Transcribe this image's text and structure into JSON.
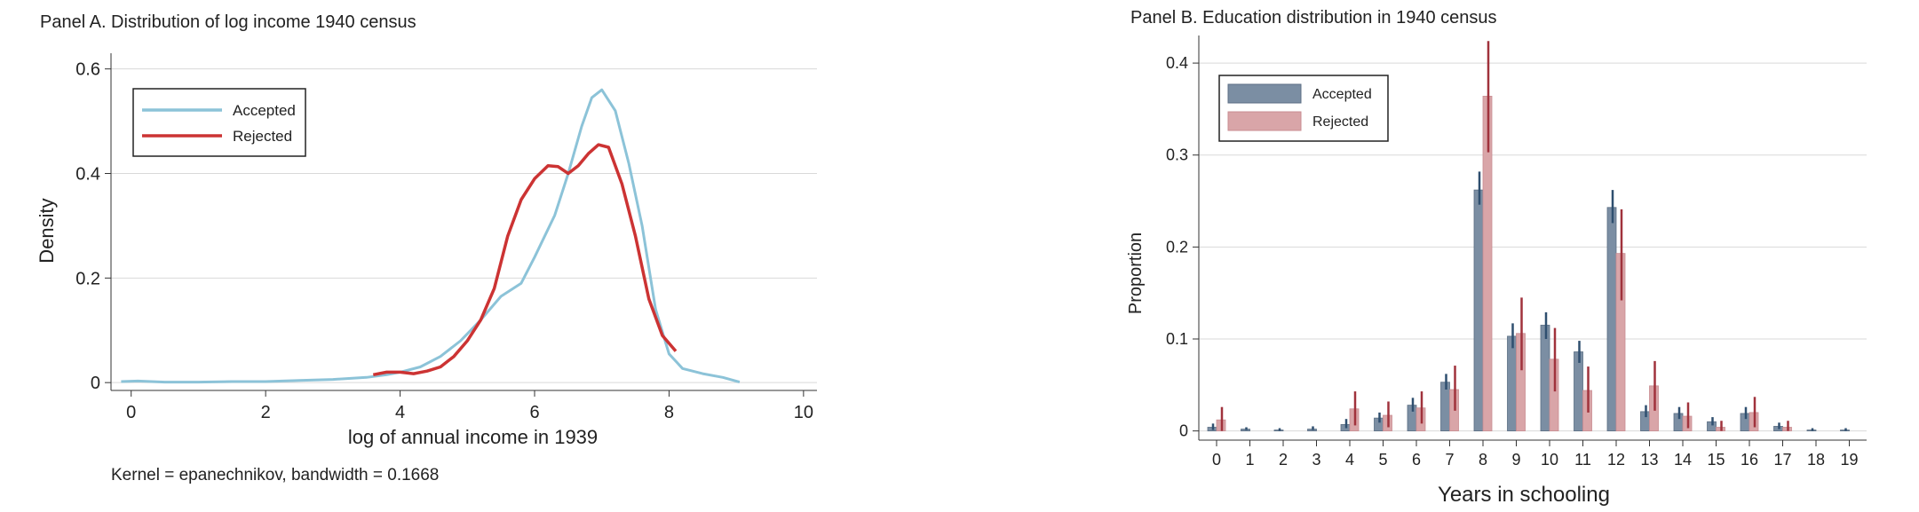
{
  "chart_data": [
    {
      "type": "line",
      "title": "Panel A. Distribution of log income 1940 census",
      "xlabel": "log of annual income in 1939",
      "ylabel": "Density",
      "xlim": [
        -0.3,
        10.2
      ],
      "ylim": [
        -0.015,
        0.63
      ],
      "xticks": [
        0,
        2,
        4,
        6,
        8,
        10
      ],
      "yticks": [
        0,
        0.2,
        0.4,
        0.6
      ],
      "xtick_labels": [
        "0",
        "2",
        "4",
        "6",
        "8",
        "10"
      ],
      "ytick_labels": [
        "0",
        "0.2",
        "0.4",
        "0.6"
      ],
      "grid": true,
      "legend": "top-left",
      "note": "Kernel = epanechnikov, bandwidth = 0.1668",
      "series": [
        {
          "name": "Accepted",
          "color": "#8cc3d8",
          "x": [
            -0.15,
            0.1,
            0.5,
            1.0,
            1.5,
            2.0,
            2.5,
            3.0,
            3.5,
            3.8,
            4.0,
            4.3,
            4.6,
            4.9,
            5.2,
            5.5,
            5.8,
            6.0,
            6.3,
            6.5,
            6.7,
            6.85,
            7.0,
            7.2,
            7.4,
            7.6,
            7.8,
            8.0,
            8.2,
            8.5,
            8.8,
            9.05
          ],
          "y": [
            0.002,
            0.003,
            0.001,
            0.001,
            0.002,
            0.002,
            0.004,
            0.006,
            0.01,
            0.015,
            0.02,
            0.03,
            0.05,
            0.08,
            0.12,
            0.165,
            0.19,
            0.24,
            0.32,
            0.4,
            0.49,
            0.545,
            0.56,
            0.52,
            0.42,
            0.3,
            0.14,
            0.055,
            0.027,
            0.017,
            0.01,
            0.001
          ]
        },
        {
          "name": "Rejected",
          "color": "#cc3333",
          "x": [
            3.6,
            3.8,
            4.0,
            4.2,
            4.4,
            4.6,
            4.8,
            5.0,
            5.2,
            5.4,
            5.6,
            5.8,
            6.0,
            6.2,
            6.35,
            6.5,
            6.65,
            6.8,
            6.95,
            7.1,
            7.3,
            7.5,
            7.7,
            7.9,
            8.1
          ],
          "y": [
            0.015,
            0.02,
            0.02,
            0.017,
            0.022,
            0.03,
            0.05,
            0.08,
            0.12,
            0.18,
            0.28,
            0.35,
            0.39,
            0.415,
            0.413,
            0.4,
            0.415,
            0.438,
            0.455,
            0.45,
            0.38,
            0.28,
            0.16,
            0.09,
            0.06
          ]
        }
      ]
    },
    {
      "type": "bar",
      "title": "Panel B. Education distribution in 1940 census",
      "xlabel": "Years in schooling",
      "ylabel": "Proportion",
      "ylim": [
        -0.01,
        0.43
      ],
      "yticks": [
        0,
        0.1,
        0.2,
        0.3,
        0.4
      ],
      "ytick_labels": [
        "0",
        "0.1",
        "0.2",
        "0.3",
        "0.4"
      ],
      "grid": true,
      "legend": "top-left",
      "categories": [
        "0",
        "1",
        "2",
        "3",
        "4",
        "5",
        "6",
        "7",
        "8",
        "9",
        "10",
        "11",
        "12",
        "13",
        "14",
        "15",
        "16",
        "17",
        "18",
        "19"
      ],
      "series": [
        {
          "name": "Accepted",
          "color": "#7b8ea3",
          "error_color": "#2f4f6f",
          "values": [
            0.004,
            0.002,
            0.001,
            0.002,
            0.007,
            0.014,
            0.028,
            0.053,
            0.262,
            0.103,
            0.115,
            0.086,
            0.243,
            0.021,
            0.019,
            0.01,
            0.019,
            0.005,
            0.001,
            0.001
          ],
          "err_low": [
            0.001,
            0.001,
            0.0,
            0.001,
            0.003,
            0.009,
            0.021,
            0.045,
            0.246,
            0.09,
            0.1,
            0.074,
            0.226,
            0.015,
            0.013,
            0.006,
            0.013,
            0.002,
            0.0,
            0.0
          ],
          "err_high": [
            0.008,
            0.004,
            0.003,
            0.005,
            0.013,
            0.02,
            0.036,
            0.062,
            0.282,
            0.117,
            0.129,
            0.098,
            0.262,
            0.028,
            0.026,
            0.015,
            0.026,
            0.009,
            0.003,
            0.003
          ]
        },
        {
          "name": "Rejected",
          "color": "#d9a5a8",
          "error_color": "#a0323c",
          "values": [
            0.012,
            0.0,
            0.0,
            0.0,
            0.024,
            0.017,
            0.025,
            0.045,
            0.364,
            0.106,
            0.078,
            0.044,
            0.193,
            0.049,
            0.016,
            0.004,
            0.02,
            0.004,
            0.0,
            0.0
          ],
          "err_low": [
            0.0,
            0.0,
            0.0,
            0.0,
            0.006,
            0.004,
            0.008,
            0.022,
            0.303,
            0.066,
            0.043,
            0.02,
            0.142,
            0.022,
            0.003,
            0.0,
            0.004,
            0.0,
            0.0,
            0.0
          ],
          "err_high": [
            0.026,
            0.0,
            0.0,
            0.0,
            0.043,
            0.032,
            0.043,
            0.071,
            0.424,
            0.145,
            0.112,
            0.07,
            0.241,
            0.076,
            0.031,
            0.011,
            0.037,
            0.011,
            0.0,
            0.0
          ]
        }
      ]
    }
  ]
}
